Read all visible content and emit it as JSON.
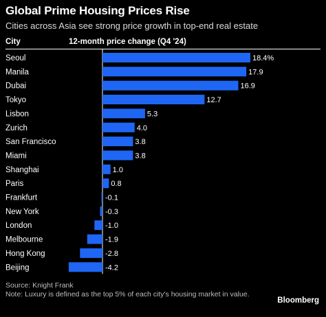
{
  "header": {
    "title": "Global Prime Housing Prices Rise",
    "subtitle": "Cities across Asia see strong price growth in top-end real estate",
    "col_city": "City",
    "col_metric": "12-month price change (Q4 '24)"
  },
  "footer": {
    "source": "Source: Knight Frank",
    "note": "Note: Luxury is defined as the top 5% of each city's housing market in value.",
    "logo": "Bloomberg"
  },
  "colors": {
    "bar": "#1f66f4",
    "background": "#000000",
    "text": "#ffffff"
  },
  "chart_data": {
    "type": "bar",
    "orientation": "horizontal",
    "categories": [
      "Seoul",
      "Manila",
      "Dubai",
      "Tokyo",
      "Lisbon",
      "Zurich",
      "San Francisco",
      "Miami",
      "Shanghai",
      "Paris",
      "Frankfurt",
      "New York",
      "London",
      "Melbourne",
      "Hong Kong",
      "Beijing"
    ],
    "values": [
      18.4,
      17.9,
      16.9,
      12.7,
      5.3,
      4.0,
      3.8,
      3.8,
      1.0,
      0.8,
      -0.1,
      -0.3,
      -1.0,
      -1.9,
      -2.8,
      -4.2
    ],
    "data_labels": [
      "18.4%",
      "17.9",
      "16.9",
      "12.7",
      "5.3",
      "4.0",
      "3.8",
      "3.8",
      "1.0",
      "0.8",
      "-0.1",
      "-0.3",
      "-1.0",
      "-1.9",
      "-2.8",
      "-4.2"
    ],
    "title": "Global Prime Housing Prices Rise",
    "xlim": [
      -4.2,
      18.4
    ],
    "unit": "%",
    "legend": "none",
    "grid": false
  }
}
